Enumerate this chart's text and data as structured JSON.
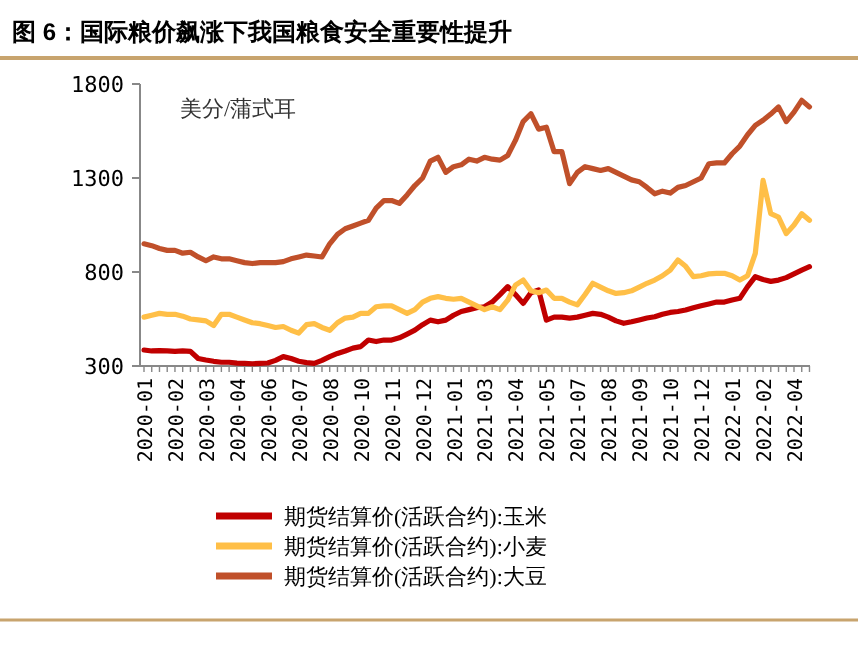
{
  "chart_data": {
    "type": "line",
    "title": "图 6：国际粮价飙涨下我国粮食安全重要性提升",
    "ylabel": "美分/蒲式耳",
    "categories": [
      "2020-01",
      null,
      null,
      null,
      "2020-02",
      null,
      null,
      null,
      "2020-03",
      null,
      null,
      null,
      "2020-04",
      null,
      null,
      null,
      "2020-06",
      null,
      null,
      null,
      "2020-07",
      null,
      null,
      null,
      "2020-08",
      null,
      null,
      null,
      "2020-10",
      null,
      null,
      null,
      "2020-11",
      null,
      null,
      null,
      "2020-12",
      null,
      null,
      null,
      "2021-01",
      null,
      null,
      null,
      "2021-03",
      null,
      null,
      null,
      "2021-04",
      null,
      null,
      null,
      "2021-05",
      null,
      null,
      null,
      "2021-07",
      null,
      null,
      null,
      "2021-08",
      null,
      null,
      null,
      "2021-09",
      null,
      null,
      null,
      "2021-10",
      null,
      null,
      null,
      "2021-12",
      null,
      null,
      null,
      "2022-01",
      null,
      null,
      null,
      "2022-02",
      null,
      null,
      null,
      "2022-04",
      null,
      null
    ],
    "series": [
      {
        "name": "期货结算价(活跃合约):玉米",
        "color": "#c00000",
        "values": [
          385,
          380,
          382,
          380,
          378,
          380,
          378,
          340,
          332,
          325,
          320,
          320,
          315,
          314,
          312,
          314,
          316,
          330,
          350,
          340,
          325,
          318,
          314,
          330,
          350,
          367,
          380,
          395,
          403,
          438,
          430,
          438,
          438,
          450,
          470,
          491,
          520,
          544,
          535,
          544,
          570,
          590,
          600,
          610,
          615,
          640,
          680,
          722,
          680,
          633,
          690,
          704,
          544,
          560,
          560,
          555,
          560,
          570,
          580,
          575,
          560,
          540,
          527,
          535,
          545,
          555,
          562,
          575,
          585,
          590,
          598,
          610,
          620,
          630,
          640,
          640,
          651,
          660,
          722,
          775,
          760,
          750,
          757,
          770,
          790,
          810,
          828
        ]
      },
      {
        "name": "期货结算价(活跃合约):小麦",
        "color": "#ffbf47",
        "values": [
          560,
          570,
          580,
          575,
          575,
          565,
          550,
          545,
          540,
          515,
          575,
          575,
          560,
          545,
          530,
          525,
          515,
          505,
          510,
          490,
          475,
          520,
          525,
          505,
          490,
          530,
          555,
          560,
          580,
          580,
          615,
          620,
          620,
          600,
          580,
          600,
          640,
          660,
          669,
          660,
          655,
          660,
          640,
          620,
          600,
          615,
          600,
          650,
          730,
          757,
          700,
          690,
          704,
          660,
          660,
          640,
          625,
          680,
          740,
          720,
          700,
          686,
          690,
          700,
          720,
          740,
          757,
          780,
          810,
          864,
          830,
          775,
          780,
          790,
          793,
          793,
          780,
          757,
          780,
          899,
          1287,
          1110,
          1092,
          1004,
          1050,
          1110,
          1075
        ]
      },
      {
        "name": "期货结算价(活跃合约):大豆",
        "color": "#c0502a",
        "values": [
          950,
          940,
          925,
          915,
          915,
          900,
          905,
          880,
          860,
          880,
          870,
          870,
          860,
          850,
          845,
          850,
          850,
          850,
          855,
          870,
          880,
          890,
          885,
          880,
          950,
          1000,
          1030,
          1045,
          1060,
          1075,
          1140,
          1180,
          1180,
          1165,
          1210,
          1260,
          1300,
          1390,
          1410,
          1330,
          1360,
          1370,
          1400,
          1390,
          1410,
          1400,
          1395,
          1420,
          1500,
          1600,
          1642,
          1560,
          1570,
          1440,
          1440,
          1270,
          1330,
          1360,
          1350,
          1340,
          1350,
          1330,
          1310,
          1290,
          1280,
          1250,
          1216,
          1230,
          1220,
          1250,
          1260,
          1280,
          1300,
          1376,
          1380,
          1380,
          1429,
          1470,
          1530,
          1580,
          1607,
          1640,
          1678,
          1600,
          1650,
          1713,
          1678
        ]
      }
    ],
    "ylim": [
      300,
      1800
    ],
    "yticks": [
      300,
      800,
      1300,
      1800
    ],
    "grid": false,
    "legend": "bottom",
    "marker": "none",
    "line_style": "solid"
  }
}
